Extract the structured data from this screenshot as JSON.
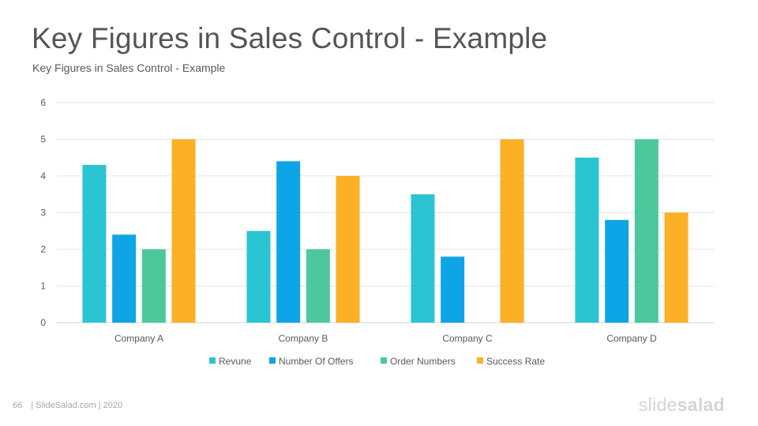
{
  "slide": {
    "title": "Key Figures in Sales Control - Example",
    "subtitle": "Key Figures in Sales Control - Example"
  },
  "footer": {
    "page_number": "66",
    "text": "| SlideSalad.com | 2020"
  },
  "brand": {
    "part1": "slide",
    "part2": "salad"
  },
  "chart_data": {
    "type": "bar",
    "categories": [
      "Company A",
      "Company B",
      "Company C",
      "Company D"
    ],
    "series": [
      {
        "name": "Revune",
        "color": "#2bc4d2",
        "values": [
          4.3,
          2.5,
          3.5,
          4.5
        ]
      },
      {
        "name": "Number Of Offers",
        "color": "#0ea5e6",
        "values": [
          2.4,
          4.4,
          1.8,
          2.8
        ]
      },
      {
        "name": "Order Numbers",
        "color": "#4cc89c",
        "values": [
          2,
          2,
          0,
          5
        ]
      },
      {
        "name": "Success Rate",
        "color": "#fbb025",
        "values": [
          5,
          4,
          5,
          3
        ]
      }
    ],
    "ylim": [
      0,
      6
    ],
    "yticks": [
      0,
      1,
      2,
      3,
      4,
      5,
      6
    ],
    "grid": true,
    "legend": "bottom",
    "xlabel": "",
    "ylabel": ""
  }
}
